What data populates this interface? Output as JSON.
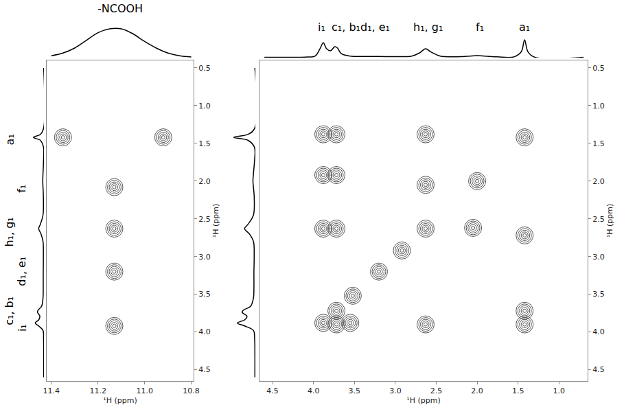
{
  "chart_data": [
    {
      "type": "contour",
      "x_title": "¹H (ppm)",
      "y_title": "¹H (ppm)",
      "xlim": [
        11.42,
        10.79
      ],
      "ylim": [
        4.65,
        0.4
      ],
      "xticks": [
        11.4,
        11.2,
        {
          "value": 11,
          "label": "11.0"
        },
        10.8
      ],
      "yticks": [
        0.5,
        {
          "value": 1,
          "label": "1.0"
        },
        1.5,
        {
          "value": 2,
          "label": "2.0"
        },
        2.5,
        {
          "value": 3,
          "label": "3.0"
        },
        3.5,
        {
          "value": 4,
          "label": "4.0"
        },
        4.5
      ],
      "color": "#555555",
      "peaks": {
        "x": [
          11.35,
          10.92,
          11.13,
          11.13,
          11.13,
          11.13
        ],
        "y": [
          1.42,
          1.42,
          2.08,
          2.63,
          3.2,
          3.92
        ]
      },
      "top_projection": {
        "label": "-NCOOH",
        "x": [
          11.4,
          11.35,
          11.3,
          11.25,
          11.2,
          11.15,
          11.1,
          11.05,
          11.0,
          10.95,
          10.9,
          10.85,
          10.8
        ],
        "values": [
          0.05,
          0.12,
          0.25,
          0.45,
          0.65,
          0.75,
          0.75,
          0.62,
          0.42,
          0.25,
          0.12,
          0.05,
          0.02
        ]
      },
      "side_projection": {
        "y": [
          4.6,
          4.3,
          4.1,
          3.98,
          3.92,
          3.88,
          3.84,
          3.79,
          3.74,
          3.71,
          3.66,
          3.55,
          3.4,
          3.2,
          3.0,
          2.8,
          2.7,
          2.63,
          2.57,
          2.45,
          2.2,
          2.0,
          1.9,
          1.75,
          1.55,
          1.46,
          1.42,
          1.38,
          1.3,
          0.5
        ],
        "values": [
          0.02,
          0.02,
          0.03,
          0.08,
          0.45,
          0.75,
          0.45,
          0.35,
          0.55,
          0.5,
          0.2,
          0.08,
          0.06,
          0.06,
          0.05,
          0.08,
          0.25,
          0.45,
          0.3,
          0.08,
          0.05,
          0.1,
          0.08,
          0.04,
          0.04,
          0.3,
          0.9,
          0.3,
          0.03,
          0.02
        ],
        "peak_labels": [
          {
            "text": "a₁",
            "y": 1.45
          },
          {
            "text": "f₁",
            "y": 2.1
          },
          {
            "text": "h₁, g₁",
            "y": 2.68
          },
          {
            "text": "d₁, e₁",
            "y": 3.2
          },
          {
            "text": "c₁, b₁",
            "y": 3.72
          },
          {
            "text": "i₁",
            "y": 3.95
          }
        ]
      }
    },
    {
      "type": "contour",
      "x_title": "¹H (ppm)",
      "y_title": "¹H (ppm)",
      "xlim": [
        4.66,
        0.65
      ],
      "ylim": [
        4.65,
        0.4
      ],
      "xticks": [
        4.5,
        {
          "value": 4,
          "label": "4.0"
        },
        3.5,
        {
          "value": 3,
          "label": "3.0"
        },
        2.5,
        {
          "value": 2,
          "label": "2.0"
        },
        1.5,
        {
          "value": 1,
          "label": "1.0"
        }
      ],
      "yticks": [
        0.5,
        {
          "value": 1,
          "label": "1.0"
        },
        1.5,
        {
          "value": 2,
          "label": "2.0"
        },
        2.5,
        {
          "value": 3,
          "label": "3.0"
        },
        3.5,
        {
          "value": 4,
          "label": "4.0"
        },
        4.5
      ],
      "color": "#555555",
      "peaks": {
        "x": [
          3.88,
          3.72,
          3.52,
          3.2,
          2.92,
          2.63,
          2.0,
          1.42,
          3.88,
          3.72,
          2.63,
          3.88,
          3.72,
          2.05,
          2.63,
          3.88,
          3.72,
          1.42,
          2.63,
          1.42,
          1.42,
          3.72,
          3.55
        ],
        "y": [
          3.88,
          3.72,
          3.52,
          3.2,
          2.92,
          2.63,
          2.0,
          1.42,
          1.38,
          1.38,
          1.38,
          1.92,
          1.92,
          2.62,
          2.05,
          2.63,
          2.63,
          2.72,
          3.9,
          3.72,
          3.9,
          3.9,
          3.88
        ]
      },
      "top_projection": {
        "x": [
          4.6,
          4.3,
          4.1,
          3.98,
          3.92,
          3.88,
          3.84,
          3.79,
          3.74,
          3.71,
          3.66,
          3.55,
          3.4,
          3.2,
          3.0,
          2.8,
          2.7,
          2.63,
          2.57,
          2.45,
          2.2,
          2.0,
          1.9,
          1.75,
          1.55,
          1.46,
          1.42,
          1.38,
          1.3,
          0.7
        ],
        "values": [
          0.02,
          0.02,
          0.03,
          0.08,
          0.45,
          0.75,
          0.45,
          0.35,
          0.55,
          0.5,
          0.2,
          0.08,
          0.06,
          0.06,
          0.05,
          0.08,
          0.25,
          0.45,
          0.3,
          0.08,
          0.05,
          0.1,
          0.08,
          0.04,
          0.04,
          0.3,
          0.9,
          0.3,
          0.03,
          0.02
        ],
        "peak_labels": [
          {
            "text": "i₁",
            "x": 3.9
          },
          {
            "text": "c₁, b₁",
            "x": 3.6
          },
          {
            "text": "d₁, e₁",
            "x": 3.25
          },
          {
            "text": "h₁, g₁",
            "x": 2.6
          },
          {
            "text": "f₁",
            "x": 1.97
          },
          {
            "text": "a₁",
            "x": 1.42
          }
        ]
      },
      "side_projection": {
        "y": [
          4.6,
          4.3,
          4.1,
          3.98,
          3.92,
          3.88,
          3.84,
          3.79,
          3.74,
          3.71,
          3.66,
          3.55,
          3.4,
          3.2,
          3.0,
          2.8,
          2.7,
          2.63,
          2.57,
          2.45,
          2.2,
          2.0,
          1.9,
          1.75,
          1.55,
          1.46,
          1.42,
          1.38,
          1.3,
          0.5
        ],
        "values": [
          0.02,
          0.02,
          0.03,
          0.08,
          0.45,
          0.75,
          0.45,
          0.35,
          0.55,
          0.5,
          0.2,
          0.08,
          0.06,
          0.06,
          0.05,
          0.08,
          0.25,
          0.45,
          0.3,
          0.08,
          0.05,
          0.1,
          0.08,
          0.04,
          0.04,
          0.3,
          0.9,
          0.3,
          0.03,
          0.02
        ]
      }
    }
  ]
}
